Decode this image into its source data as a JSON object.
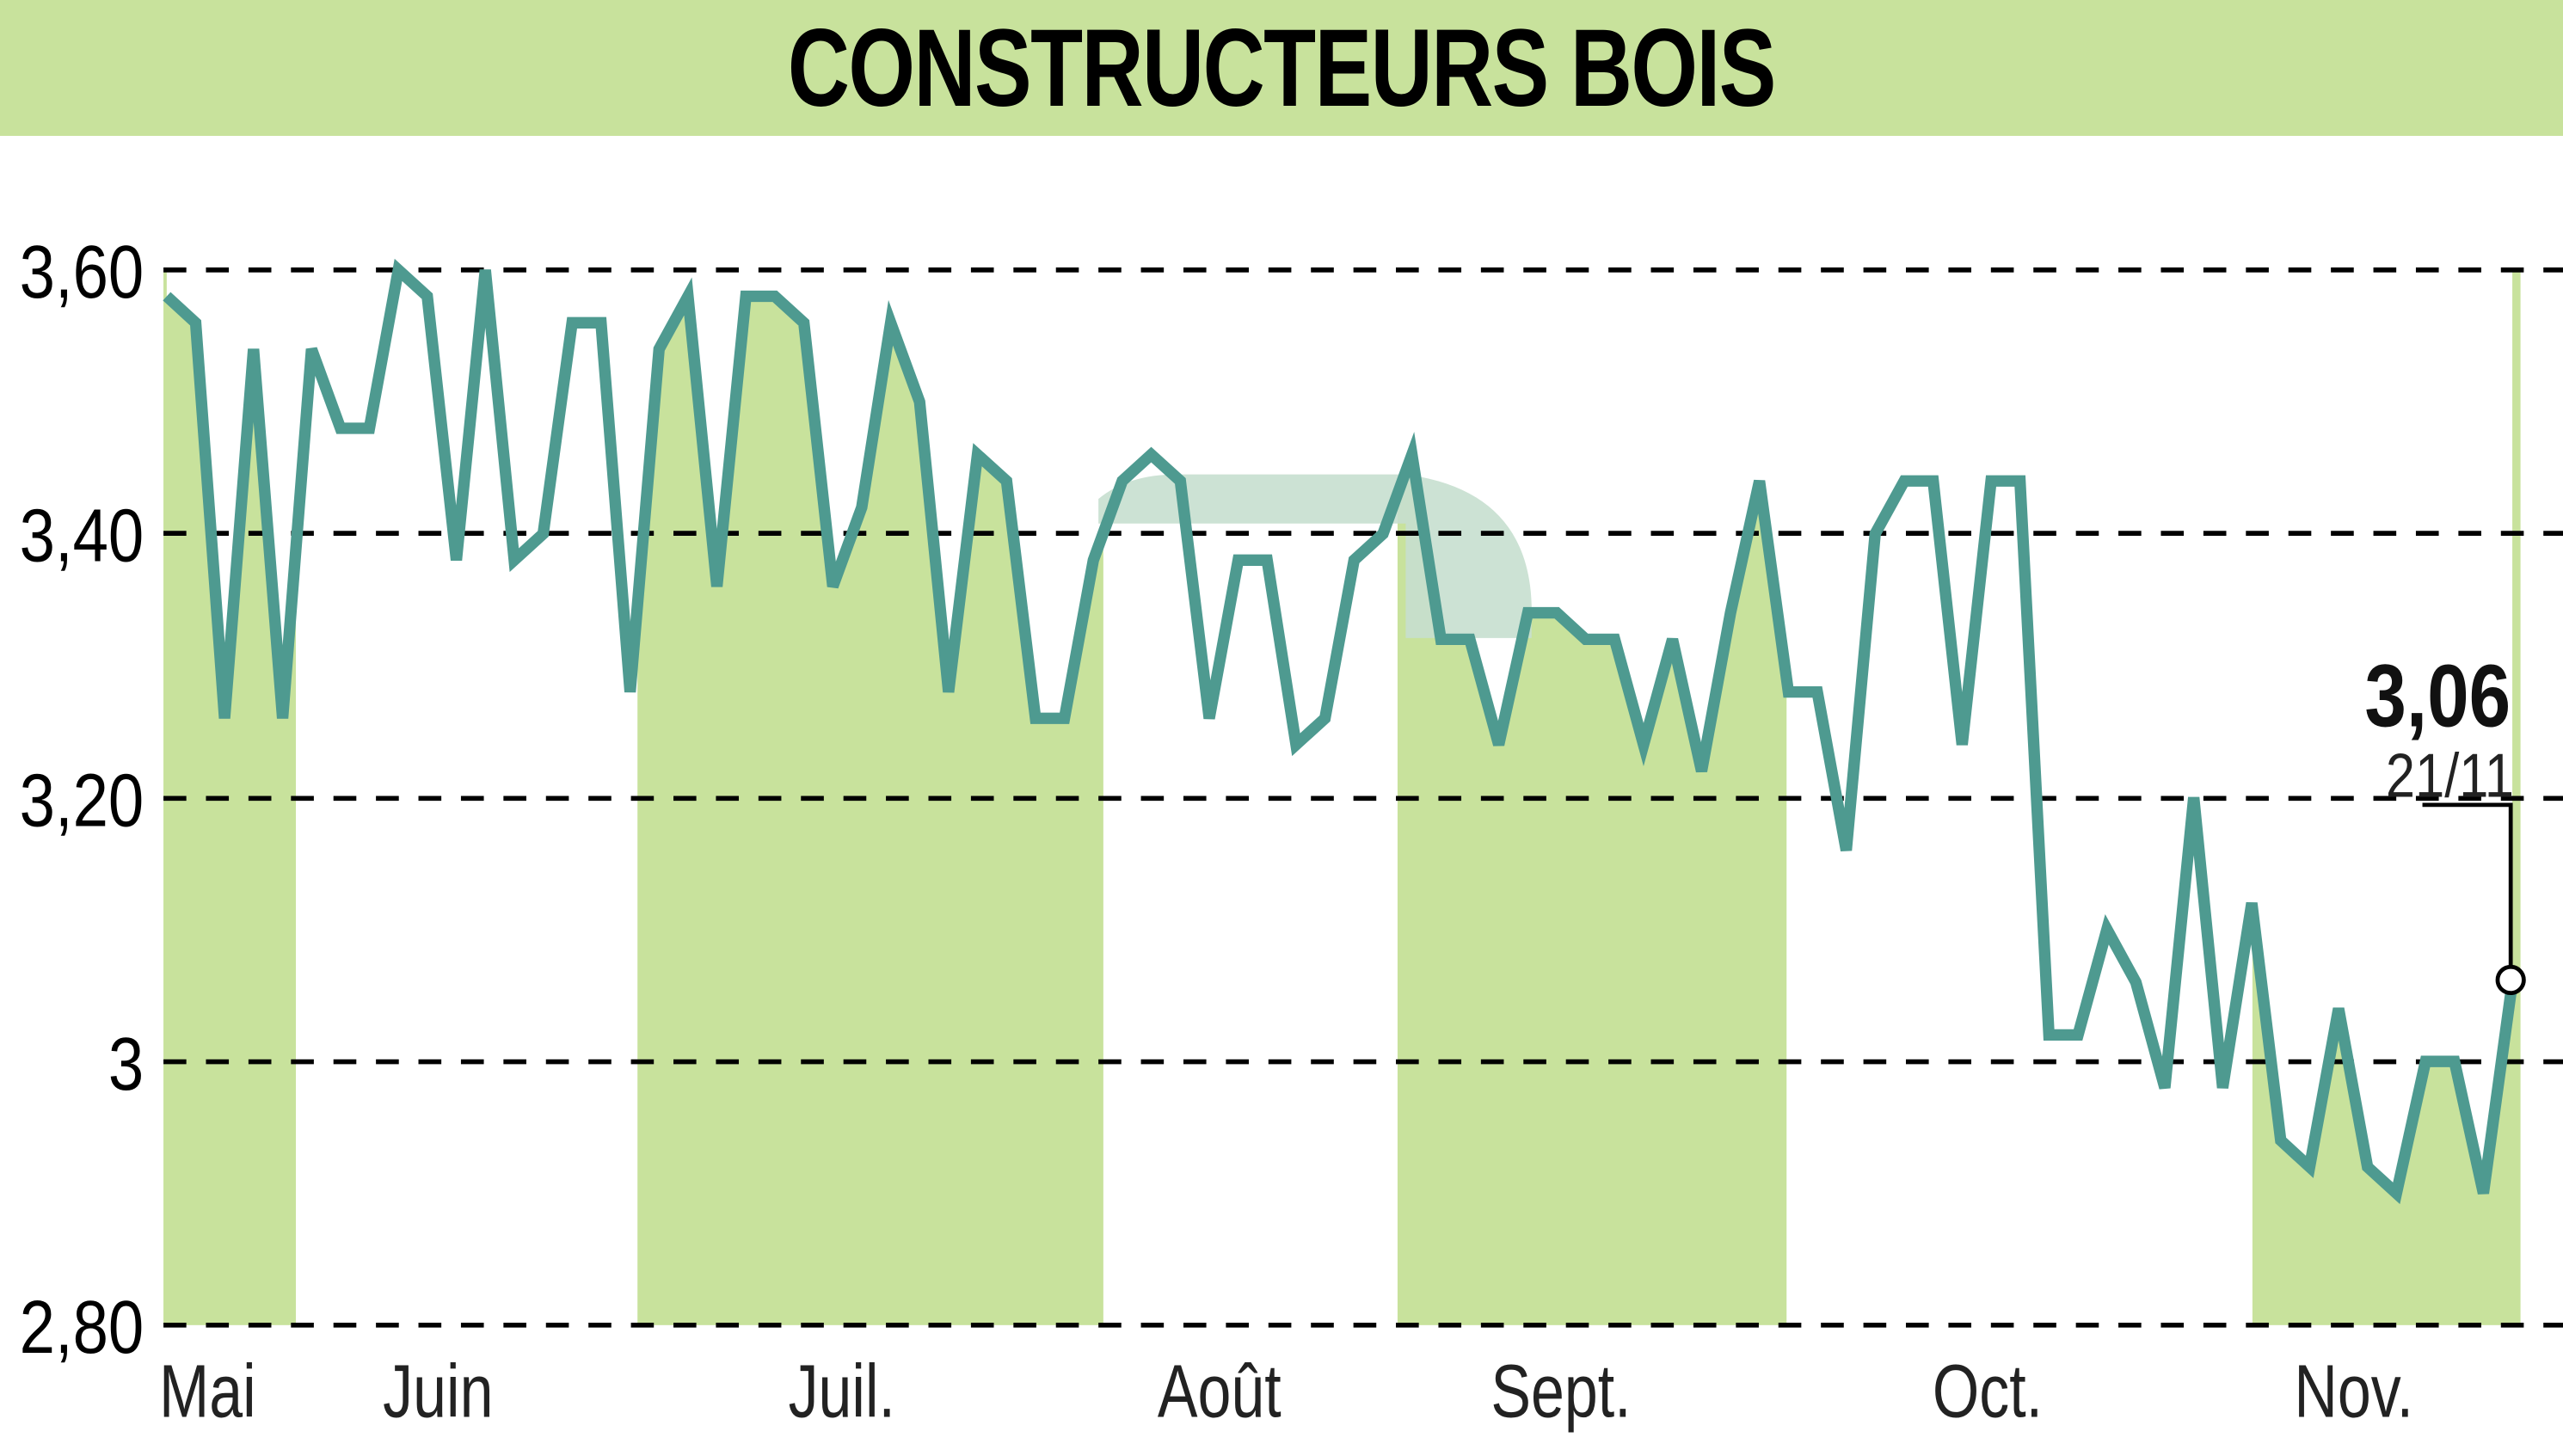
{
  "header": {
    "title": "CONSTRUCTEURS BOIS"
  },
  "colors": {
    "title_bg": "#c8e29c",
    "band_fill": "#c8e29c",
    "line": "#4e9a90",
    "watermark": "#c6dfcf",
    "grid": "#000000"
  },
  "annotation": {
    "last_value": "3,06",
    "last_date": "21/11"
  },
  "chart_data": {
    "type": "line",
    "title": "CONSTRUCTEURS BOIS",
    "xlabel": "",
    "ylabel": "",
    "ylim": [
      2.8,
      3.6
    ],
    "yticks": [
      "3,60",
      "3,40",
      "3,20",
      "3",
      "2,80"
    ],
    "ytick_values": [
      3.6,
      3.4,
      3.2,
      3.0,
      2.8
    ],
    "xticks": [
      "Mai",
      "Juin",
      "Juil.",
      "Août",
      "Sept.",
      "Oct.",
      "Nov."
    ],
    "grid": "horizontal dashed",
    "shaded_months": [
      "Mai",
      "Juil.",
      "Sept.",
      "Nov."
    ],
    "last_point": {
      "date": "21/11",
      "value": 3.06
    },
    "series": [
      {
        "name": "CONSTRUCTEURS BOIS",
        "values": [
          3.58,
          3.56,
          3.26,
          3.54,
          3.26,
          3.54,
          3.48,
          3.48,
          3.6,
          3.58,
          3.38,
          3.6,
          3.38,
          3.4,
          3.56,
          3.56,
          3.28,
          3.54,
          3.58,
          3.36,
          3.58,
          3.58,
          3.56,
          3.36,
          3.42,
          3.56,
          3.5,
          3.28,
          3.46,
          3.44,
          3.26,
          3.26,
          3.38,
          3.44,
          3.46,
          3.44,
          3.26,
          3.38,
          3.38,
          3.24,
          3.26,
          3.38,
          3.4,
          3.46,
          3.32,
          3.32,
          3.24,
          3.34,
          3.34,
          3.32,
          3.32,
          3.24,
          3.32,
          3.22,
          3.34,
          3.44,
          3.28,
          3.28,
          3.16,
          3.4,
          3.44,
          3.44,
          3.24,
          3.44,
          3.44,
          3.02,
          3.02,
          3.1,
          3.06,
          2.98,
          3.2,
          2.98,
          3.12,
          2.94,
          2.92,
          3.04,
          2.92,
          2.9,
          3.0,
          3.0,
          2.9,
          3.06
        ]
      }
    ]
  }
}
